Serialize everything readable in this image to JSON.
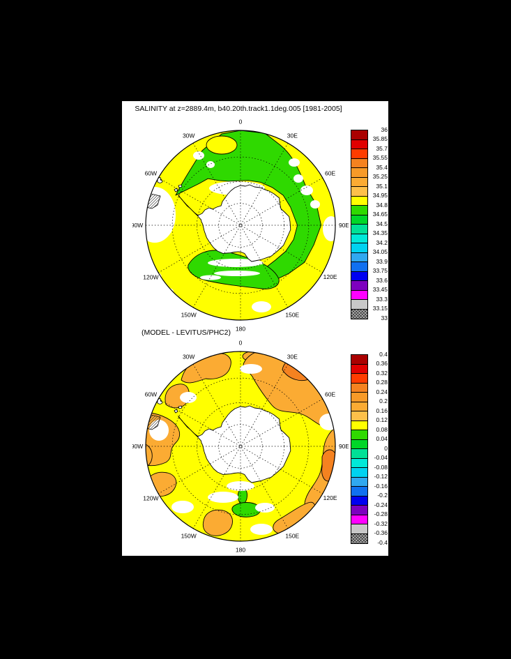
{
  "window": {
    "background": "#000000",
    "paper": "#ffffff"
  },
  "figure": {
    "title": "SALINITY at z=2889.4m, b40.20th.track1.1deg.005 [1981-2005]",
    "subtitle": "(MODEL - LEVITUS/PHC2)",
    "colors": {
      "ocean": "#ffff00",
      "green": "#2fd900",
      "amber": "#fbab33",
      "deep_orange": "#f58220",
      "land": "#ffffff",
      "contour": "#000000"
    },
    "palette": [
      "#aa0000",
      "#e00000",
      "#ff3c00",
      "#f58220",
      "#f79a28",
      "#fbab33",
      "#fdc04a",
      "#ffff00",
      "#2fd900",
      "#00d628",
      "#00e096",
      "#00e8d8",
      "#00d2f0",
      "#30a8f0",
      "#1070f0",
      "#0000f0",
      "#7d00bf",
      "#ff00ff",
      "#c8c8c8",
      "hatch"
    ],
    "panels": [
      {
        "name": "salinity-map",
        "lon_labels": [
          "0",
          "30E",
          "60E",
          "90E",
          "120E",
          "150E",
          "180",
          "150W",
          "120W",
          "90W",
          "60W",
          "30W"
        ],
        "colorbar": {
          "labels": [
            "36",
            "35.85",
            "35.7",
            "35.55",
            "35.4",
            "35.25",
            "35.1",
            "34.95",
            "34.8",
            "34.65",
            "34.5",
            "34.35",
            "34.2",
            "34.05",
            "33.9",
            "33.75",
            "33.6",
            "33.45",
            "33.3",
            "33.15",
            "33"
          ]
        }
      },
      {
        "name": "difference-map",
        "lon_labels": [
          "0",
          "30E",
          "60E",
          "90E",
          "120E",
          "150E",
          "180",
          "150W",
          "120W",
          "90W",
          "60W",
          "30W"
        ],
        "colorbar": {
          "labels": [
            "0.4",
            "0.36",
            "0.32",
            "0.28",
            "0.24",
            "0.2",
            "0.16",
            "0.12",
            "0.08",
            "0.04",
            "0",
            "-0.04",
            "-0.08",
            "-0.12",
            "-0.16",
            "-0.2",
            "-0.24",
            "-0.28",
            "-0.32",
            "-0.36",
            "-0.4"
          ]
        }
      }
    ]
  },
  "chart_data": [
    {
      "type": "heatmap",
      "title": "SALINITY at z=2889.4m, b40.20th.track1.1deg.005 [1981-2005]",
      "projection": "south polar stereographic, Antarctica centered, 0 longitude at top, outer edge near 30S",
      "units": "psu",
      "levels": [
        33,
        33.15,
        33.3,
        33.45,
        33.6,
        33.75,
        33.9,
        34.05,
        34.2,
        34.35,
        34.5,
        34.65,
        34.8,
        34.95,
        35.1,
        35.25,
        35.4,
        35.55,
        35.7,
        35.85,
        36
      ],
      "dominant_range": "34.8-34.95 (yellow) over most of the Southern Ocean",
      "secondary_range": "34.65-34.8 (green) over Weddell Sea / Atlantic sector, East Antarctic coastal band (30E-150E) and Ross Sea sector",
      "missing_data": "white patches: Bellingshausen Sea near Antarctic Peninsula, ice-shelf margins, scattered coastal blobs",
      "legend_position": "right vertical colorbar",
      "graticule": "dotted meridians every 30 deg, dotted latitude circles"
    },
    {
      "type": "heatmap",
      "title": "(MODEL - LEVITUS/PHC2)",
      "projection": "south polar stereographic, Antarctica centered, 0 longitude at top, outer edge near 30S",
      "units": "psu difference",
      "levels": [
        -0.4,
        -0.36,
        -0.32,
        -0.28,
        -0.24,
        -0.2,
        -0.16,
        -0.12,
        -0.08,
        -0.04,
        0,
        0.04,
        0.08,
        0.12,
        0.16,
        0.2,
        0.24,
        0.28,
        0.32,
        0.36,
        0.4
      ],
      "dominant_range": "0.08-0.12 (yellow) over most of the ocean",
      "positive_patches": "0.12-0.24 (amber/orange) patches: 30W-0 near rim, 10E-75E sector with 0.2-0.24 core, 85E-135E band with core, 140E-165E band, blobs near 120W and 150W, strip near 90W-110W rim",
      "near_zero": "0.04-0.08 (green) small patch near Ross Sea",
      "missing_data": "white patches around Antarctic Peninsula, coastal margins and scattered blobs",
      "legend_position": "right vertical colorbar",
      "graticule": "dotted meridians every 30 deg, dotted latitude circles"
    }
  ]
}
